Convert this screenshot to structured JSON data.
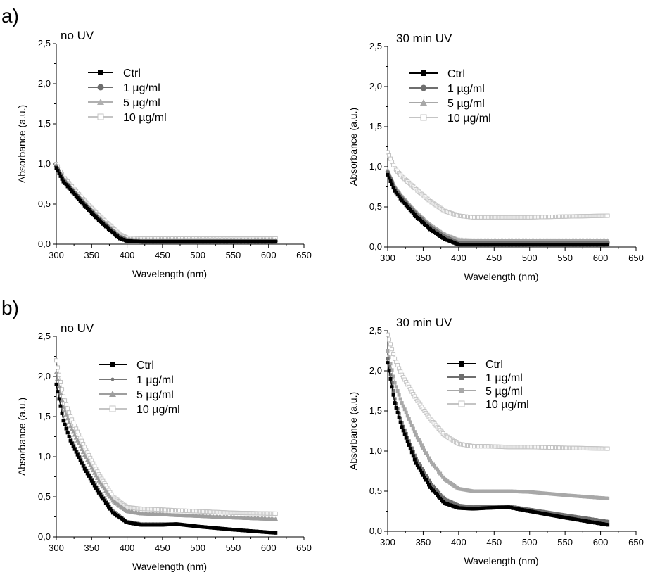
{
  "panel_labels": [
    "a)",
    "b)"
  ],
  "chart_data": [
    {
      "type": "line",
      "panel": "a)",
      "title": "no UV",
      "xlabel": "Wavelength (nm)",
      "ylabel": "Absorbance (a.u.)",
      "xlim": [
        300,
        650
      ],
      "ylim": [
        0,
        2.5
      ],
      "xticks": [
        "300",
        "350",
        "400",
        "450",
        "500",
        "550",
        "600",
        "650"
      ],
      "yticks": [
        "0,0",
        "0,5",
        "1,0",
        "1,5",
        "2,0",
        "2,5"
      ],
      "legend_position": "top-left",
      "series": [
        {
          "name": "Ctrl",
          "color": "#000000",
          "marker": "square-filled",
          "x": [
            300,
            310,
            320,
            340,
            360,
            375,
            390,
            400,
            420,
            450,
            500,
            550,
            610
          ],
          "y": [
            0.95,
            0.78,
            0.68,
            0.48,
            0.3,
            0.18,
            0.07,
            0.04,
            0.03,
            0.03,
            0.03,
            0.03,
            0.03
          ]
        },
        {
          "name": "1 µg/ml",
          "color": "#6e6e6e",
          "marker": "circle-filled",
          "x": [
            300,
            310,
            320,
            340,
            360,
            375,
            390,
            400,
            420,
            450,
            500,
            550,
            610
          ],
          "y": [
            0.97,
            0.8,
            0.7,
            0.5,
            0.32,
            0.2,
            0.09,
            0.05,
            0.04,
            0.04,
            0.04,
            0.04,
            0.04
          ]
        },
        {
          "name": "5 µg/ml",
          "color": "#b0b0b0",
          "marker": "triangle-filled",
          "x": [
            300,
            310,
            320,
            340,
            360,
            375,
            390,
            400,
            420,
            450,
            500,
            550,
            610
          ],
          "y": [
            0.99,
            0.82,
            0.72,
            0.52,
            0.34,
            0.22,
            0.1,
            0.06,
            0.05,
            0.05,
            0.05,
            0.05,
            0.05
          ]
        },
        {
          "name": "10 µg/ml",
          "color": "#c4c4c4",
          "marker": "square-open",
          "x": [
            300,
            310,
            320,
            340,
            360,
            375,
            390,
            400,
            420,
            450,
            500,
            550,
            610
          ],
          "y": [
            1.0,
            0.84,
            0.74,
            0.54,
            0.36,
            0.24,
            0.12,
            0.08,
            0.07,
            0.07,
            0.07,
            0.07,
            0.07
          ]
        }
      ]
    },
    {
      "type": "line",
      "panel": "",
      "title": "30 min UV",
      "xlabel": "Wavelength (nm)",
      "ylabel": "Absorbance (a.u.)",
      "xlim": [
        300,
        650
      ],
      "ylim": [
        0,
        2.5
      ],
      "xticks": [
        "300",
        "350",
        "400",
        "450",
        "500",
        "550",
        "600",
        "650"
      ],
      "yticks": [
        "0,0",
        "0,5",
        "1,0",
        "1,5",
        "2,0",
        "2,5"
      ],
      "legend_position": "top-left",
      "series": [
        {
          "name": "Ctrl",
          "color": "#000000",
          "marker": "square-filled",
          "x": [
            300,
            310,
            320,
            340,
            360,
            380,
            400,
            420,
            450,
            500,
            550,
            610
          ],
          "y": [
            0.9,
            0.7,
            0.58,
            0.38,
            0.22,
            0.1,
            0.03,
            0.03,
            0.03,
            0.03,
            0.03,
            0.03
          ]
        },
        {
          "name": "1 µg/ml",
          "color": "#6e6e6e",
          "marker": "circle-filled",
          "x": [
            300,
            310,
            320,
            340,
            360,
            380,
            400,
            420,
            450,
            500,
            550,
            610
          ],
          "y": [
            0.93,
            0.73,
            0.61,
            0.41,
            0.25,
            0.13,
            0.05,
            0.05,
            0.05,
            0.05,
            0.05,
            0.05
          ]
        },
        {
          "name": "5 µg/ml",
          "color": "#a8a8a8",
          "marker": "triangle-filled",
          "x": [
            300,
            310,
            320,
            340,
            360,
            380,
            400,
            420,
            450,
            500,
            550,
            610
          ],
          "y": [
            0.96,
            0.76,
            0.64,
            0.44,
            0.28,
            0.16,
            0.09,
            0.08,
            0.08,
            0.08,
            0.08,
            0.08
          ]
        },
        {
          "name": "10 µg/ml",
          "color": "#c4c4c4",
          "marker": "square-open",
          "x": [
            300,
            310,
            320,
            340,
            360,
            380,
            400,
            420,
            450,
            500,
            550,
            610
          ],
          "y": [
            1.18,
            0.98,
            0.88,
            0.72,
            0.57,
            0.45,
            0.39,
            0.37,
            0.37,
            0.37,
            0.38,
            0.39
          ]
        }
      ]
    },
    {
      "type": "line",
      "panel": "b)",
      "title": "no UV",
      "xlabel": "Wavelength (nm)",
      "ylabel": "Absorbance (a.u.)",
      "xlim": [
        300,
        650
      ],
      "ylim": [
        0,
        2.5
      ],
      "xticks": [
        "300",
        "350",
        "400",
        "450",
        "500",
        "550",
        "600",
        "650"
      ],
      "yticks": [
        "0,0",
        "0,5",
        "1,0",
        "1,5",
        "2,0",
        "2,5"
      ],
      "legend_position": "top-center",
      "series": [
        {
          "name": "Ctrl",
          "color": "#000000",
          "marker": "square-filled",
          "x": [
            300,
            310,
            320,
            340,
            360,
            380,
            400,
            420,
            450,
            470,
            500,
            550,
            610
          ],
          "y": [
            1.9,
            1.45,
            1.2,
            0.85,
            0.55,
            0.3,
            0.18,
            0.15,
            0.15,
            0.16,
            0.13,
            0.09,
            0.05
          ]
        },
        {
          "name": "1 µg/ml",
          "color": "#777777",
          "marker": "circle-small",
          "x": [
            300,
            310,
            320,
            340,
            360,
            380,
            400,
            420,
            450,
            470,
            500,
            550,
            610
          ],
          "y": [
            1.95,
            1.5,
            1.25,
            0.9,
            0.6,
            0.34,
            0.2,
            0.17,
            0.17,
            0.17,
            0.14,
            0.1,
            0.06
          ]
        },
        {
          "name": "5 µg/ml",
          "color": "#9e9e9e",
          "marker": "triangle-filled",
          "x": [
            300,
            310,
            320,
            340,
            360,
            380,
            400,
            420,
            450,
            470,
            500,
            550,
            610
          ],
          "y": [
            2.05,
            1.62,
            1.38,
            1.02,
            0.7,
            0.45,
            0.32,
            0.29,
            0.28,
            0.27,
            0.26,
            0.24,
            0.22
          ]
        },
        {
          "name": "10 µg/ml",
          "color": "#c4c4c4",
          "marker": "square-open",
          "x": [
            300,
            310,
            320,
            340,
            360,
            380,
            400,
            420,
            450,
            470,
            500,
            550,
            610
          ],
          "y": [
            2.2,
            1.75,
            1.5,
            1.12,
            0.78,
            0.5,
            0.37,
            0.35,
            0.34,
            0.33,
            0.32,
            0.3,
            0.29
          ]
        }
      ]
    },
    {
      "type": "line",
      "panel": "",
      "title": "30 min UV",
      "xlabel": "Wavelength (nm)",
      "ylabel": "Absorbance (a.u.)",
      "xlim": [
        300,
        650
      ],
      "ylim": [
        0,
        2.5
      ],
      "xticks": [
        "300",
        "350",
        "400",
        "450",
        "500",
        "550",
        "600",
        "650"
      ],
      "yticks": [
        "0,0",
        "0,5",
        "1,0",
        "1,5",
        "2,0",
        "2,5"
      ],
      "legend_position": "top-right",
      "series": [
        {
          "name": "Ctrl",
          "color": "#000000",
          "marker": "square-filled",
          "x": [
            300,
            310,
            320,
            340,
            360,
            380,
            400,
            420,
            440,
            470,
            500,
            550,
            610
          ],
          "y": [
            2.1,
            1.6,
            1.3,
            0.85,
            0.55,
            0.35,
            0.29,
            0.28,
            0.29,
            0.3,
            0.25,
            0.17,
            0.08
          ]
        },
        {
          "name": "1 µg/ml",
          "color": "#6e6e6e",
          "marker": "square-filled",
          "x": [
            300,
            310,
            320,
            340,
            360,
            380,
            400,
            420,
            440,
            470,
            500,
            550,
            610
          ],
          "y": [
            2.15,
            1.65,
            1.35,
            0.9,
            0.6,
            0.4,
            0.32,
            0.3,
            0.31,
            0.31,
            0.27,
            0.2,
            0.12
          ]
        },
        {
          "name": "5 µg/ml",
          "color": "#a8a8a8",
          "marker": "square-filled",
          "x": [
            300,
            310,
            320,
            340,
            360,
            380,
            400,
            420,
            440,
            470,
            500,
            550,
            610
          ],
          "y": [
            2.25,
            1.85,
            1.6,
            1.2,
            0.88,
            0.65,
            0.53,
            0.5,
            0.5,
            0.5,
            0.49,
            0.45,
            0.41
          ]
        },
        {
          "name": "10 µg/ml",
          "color": "#c4c4c4",
          "marker": "square-open",
          "x": [
            300,
            310,
            320,
            340,
            360,
            380,
            400,
            420,
            440,
            470,
            500,
            550,
            610
          ],
          "y": [
            2.45,
            2.15,
            1.95,
            1.65,
            1.4,
            1.2,
            1.09,
            1.06,
            1.06,
            1.05,
            1.05,
            1.04,
            1.03
          ]
        }
      ]
    }
  ]
}
